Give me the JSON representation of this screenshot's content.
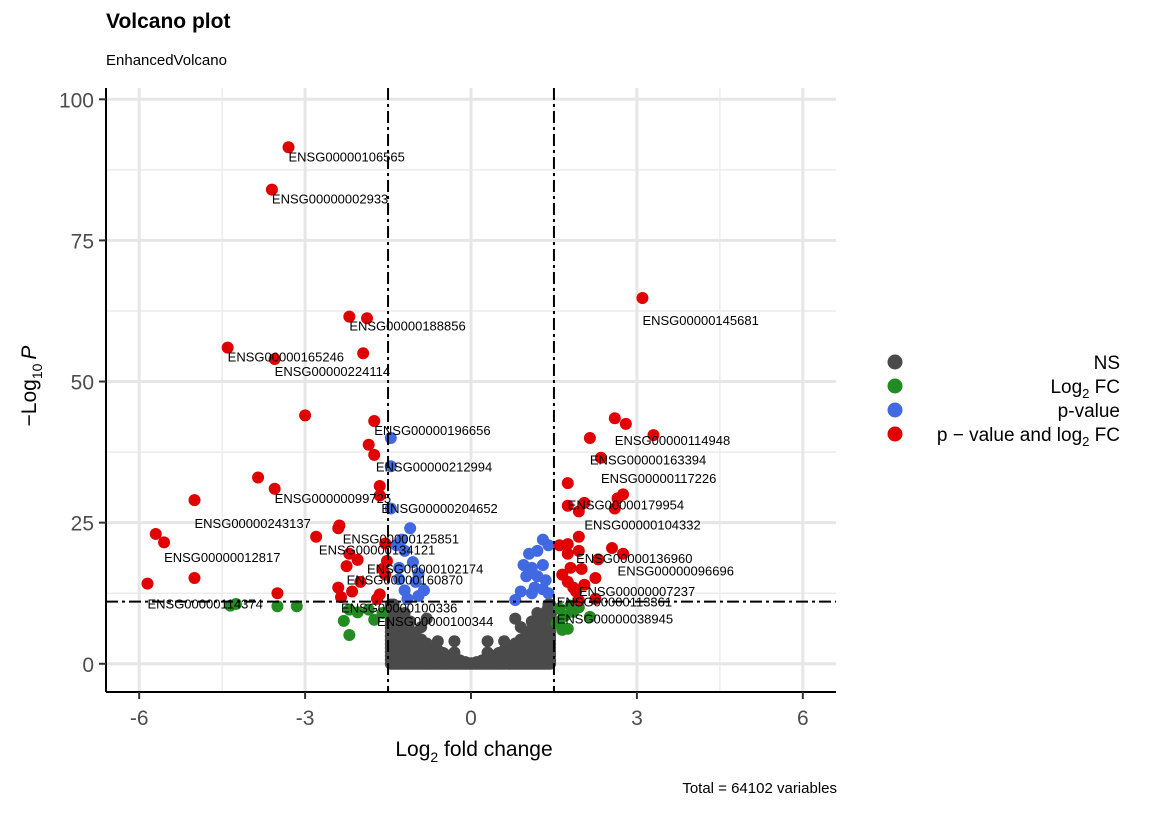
{
  "chart_data": {
    "type": "scatter",
    "title": "Volcano plot",
    "subtitle": "EnhancedVolcano",
    "caption": "Total = 64102 variables",
    "xlabel_main": "Log",
    "xlabel_sub": "2",
    "xlabel_rest": " fold change",
    "ylabel_pre": "−Log",
    "ylabel_sub": "10",
    "ylabel_var": "P",
    "xlim": [
      -6.6,
      6.6
    ],
    "ylim": [
      -5,
      102
    ],
    "x_ticks": [
      -6,
      -3,
      0,
      3,
      6
    ],
    "x_tick_labels": [
      "-6",
      "-3",
      "0",
      "3",
      "6"
    ],
    "y_ticks": [
      0,
      25,
      50,
      75,
      100
    ],
    "y_tick_labels": [
      "0",
      "25",
      "50",
      "75",
      "100"
    ],
    "fc_cutoff": 1.5,
    "p_cutoff": 11,
    "grid": true,
    "legend_position": "right",
    "legend": [
      {
        "key": "NS",
        "color": "#4a4a4a",
        "parts": [
          [
            "NS",
            ""
          ]
        ]
      },
      {
        "key": "FC",
        "color": "#228b22",
        "parts": [
          [
            "Log",
            ""
          ],
          [
            "2",
            "sub"
          ],
          [
            " FC",
            ""
          ]
        ]
      },
      {
        "key": "P",
        "color": "#4169e1",
        "parts": [
          [
            "p-value",
            ""
          ]
        ]
      },
      {
        "key": "FC_P",
        "color": "#e00000",
        "parts": [
          [
            "p − value and log",
            ""
          ],
          [
            "2",
            "sub"
          ],
          [
            " FC",
            ""
          ]
        ]
      }
    ],
    "series": [
      {
        "name": "NS",
        "color": "#4a4a4a",
        "points": [
          [
            0,
            0.1
          ],
          [
            0.1,
            0.3
          ],
          [
            -0.1,
            0.3
          ],
          [
            0.2,
            0.6
          ],
          [
            -0.2,
            0.6
          ],
          [
            0.3,
            1
          ],
          [
            -0.3,
            1
          ],
          [
            0.4,
            1.4
          ],
          [
            -0.4,
            1.4
          ],
          [
            0.5,
            1.9
          ],
          [
            -0.5,
            1.9
          ],
          [
            0.6,
            2.4
          ],
          [
            -0.6,
            2.4
          ],
          [
            0.7,
            3
          ],
          [
            -0.7,
            3
          ],
          [
            0.8,
            3.6
          ],
          [
            -0.8,
            3.6
          ],
          [
            0.9,
            4.3
          ],
          [
            -0.9,
            4.3
          ],
          [
            1,
            5
          ],
          [
            -1,
            5
          ],
          [
            1.1,
            5.7
          ],
          [
            -1.1,
            5.7
          ],
          [
            1.2,
            6.5
          ],
          [
            -1.2,
            6.5
          ],
          [
            1.3,
            7.3
          ],
          [
            -1.3,
            7.3
          ],
          [
            1.4,
            8.2
          ],
          [
            -1.4,
            8.2
          ],
          [
            1.45,
            9
          ],
          [
            -1.45,
            9
          ],
          [
            1.2,
            4
          ],
          [
            -1.2,
            4
          ],
          [
            1,
            3
          ],
          [
            -1,
            3
          ],
          [
            0.8,
            2
          ],
          [
            -0.8,
            2
          ],
          [
            1.3,
            5
          ],
          [
            -1.3,
            5
          ],
          [
            1.4,
            3
          ],
          [
            -1.4,
            3
          ],
          [
            1.4,
            6
          ],
          [
            -1.4,
            6
          ],
          [
            0.3,
            0.4
          ],
          [
            -0.3,
            0.4
          ],
          [
            0.6,
            1
          ],
          [
            -0.6,
            1
          ],
          [
            0.9,
            2
          ],
          [
            -0.9,
            2
          ],
          [
            1.1,
            3
          ],
          [
            -1.1,
            3
          ],
          [
            0.5,
            0.9
          ],
          [
            -0.5,
            0.9
          ],
          [
            0.9,
            6.5
          ],
          [
            -0.9,
            6.5
          ],
          [
            1.2,
            9
          ],
          [
            -1.2,
            9
          ],
          [
            0.6,
            4
          ],
          [
            -0.6,
            4
          ],
          [
            1.1,
            7.5
          ],
          [
            -1.1,
            7.5
          ],
          [
            0.3,
            2
          ],
          [
            -0.3,
            2
          ],
          [
            1.35,
            2
          ],
          [
            -1.35,
            2
          ],
          [
            1.25,
            1
          ],
          [
            -1.25,
            1
          ],
          [
            1.0,
            1.5
          ],
          [
            -1.0,
            1.5
          ],
          [
            0.7,
            0.8
          ],
          [
            -0.7,
            0.8
          ],
          [
            0.4,
            0.3
          ],
          [
            -0.4,
            0.3
          ],
          [
            0.3,
            4
          ],
          [
            -0.3,
            4
          ],
          [
            0.8,
            8
          ],
          [
            -0.8,
            8
          ],
          [
            1.4,
            10.5
          ],
          [
            -1.4,
            10.5
          ],
          [
            0.35,
            0.7
          ],
          [
            -0.35,
            0.7
          ]
        ]
      },
      {
        "name": "Log2 FC",
        "color": "#228b22",
        "points": [
          [
            -4.35,
            10.3
          ],
          [
            -4.25,
            10.6
          ],
          [
            -3.5,
            10.2
          ],
          [
            -3.15,
            10.2
          ],
          [
            -2.2,
            9.6
          ],
          [
            -2.05,
            9.1
          ],
          [
            -1.85,
            9.6
          ],
          [
            -2.3,
            7.6
          ],
          [
            -2.2,
            5.1
          ],
          [
            -1.75,
            7.8
          ],
          [
            -1.6,
            9
          ],
          [
            1.6,
            7.5
          ],
          [
            1.7,
            8.5
          ],
          [
            1.85,
            9.2
          ],
          [
            1.95,
            10
          ],
          [
            2.15,
            8.3
          ],
          [
            1.75,
            6.2
          ],
          [
            1.65,
            6.0
          ],
          [
            1.55,
            7.2
          ],
          [
            1.8,
            10.3
          ],
          [
            1.6,
            9.8
          ]
        ]
      },
      {
        "name": "p-value",
        "color": "#4169e1",
        "points": [
          [
            -1.45,
            40
          ],
          [
            -1.45,
            35
          ],
          [
            -1.45,
            27.5
          ],
          [
            -1.35,
            21
          ],
          [
            -1.1,
            24
          ],
          [
            -1.25,
            22
          ],
          [
            -1.2,
            20
          ],
          [
            -1.05,
            18
          ],
          [
            -0.95,
            16
          ],
          [
            -1.3,
            15
          ],
          [
            -1.2,
            13
          ],
          [
            -1.0,
            14.5
          ],
          [
            -0.85,
            13
          ],
          [
            -1.3,
            17
          ],
          [
            -1.15,
            11.5
          ],
          [
            -0.95,
            12
          ],
          [
            1.3,
            22
          ],
          [
            1.4,
            21
          ],
          [
            1.2,
            20
          ],
          [
            1.05,
            19.5
          ],
          [
            0.95,
            17.5
          ],
          [
            1.1,
            17
          ],
          [
            1.3,
            17.5
          ],
          [
            1.2,
            15.5
          ],
          [
            1.0,
            15.5
          ],
          [
            1.15,
            13.5
          ],
          [
            0.9,
            12.8
          ],
          [
            1.3,
            13.2
          ],
          [
            0.8,
            11.3
          ],
          [
            1.1,
            12.5
          ],
          [
            1.4,
            12.5
          ],
          [
            1.35,
            14.8
          ]
        ]
      },
      {
        "name": "p - value and log2 FC",
        "color": "#e00000",
        "points": [
          [
            -3.3,
            91.5
          ],
          [
            -3.6,
            84
          ],
          [
            -2.2,
            61.5
          ],
          [
            -1.88,
            61.2
          ],
          [
            -4.4,
            56
          ],
          [
            -1.95,
            55
          ],
          [
            -3.55,
            54
          ],
          [
            -3.0,
            44
          ],
          [
            -1.75,
            43
          ],
          [
            -1.85,
            38.8
          ],
          [
            -1.75,
            37
          ],
          [
            -3.85,
            33
          ],
          [
            -3.55,
            31
          ],
          [
            -1.65,
            31.5
          ],
          [
            -1.65,
            29.8
          ],
          [
            -5.0,
            29
          ],
          [
            -2.4,
            24
          ],
          [
            -2.38,
            24.5
          ],
          [
            -5.7,
            23
          ],
          [
            -5.55,
            21.5
          ],
          [
            -2.8,
            22.5
          ],
          [
            -1.55,
            21.3
          ],
          [
            -1.52,
            18.2
          ],
          [
            -2.2,
            19.5
          ],
          [
            -2.05,
            18.4
          ],
          [
            -2.25,
            17.3
          ],
          [
            -1.6,
            16.8
          ],
          [
            -1.55,
            15.8
          ],
          [
            -2.0,
            14.5
          ],
          [
            -5.0,
            15.2
          ],
          [
            -5.85,
            14.2
          ],
          [
            -2.4,
            13.5
          ],
          [
            -3.5,
            12.5
          ],
          [
            -1.65,
            12.3
          ],
          [
            -2.15,
            12.8
          ],
          [
            -2.35,
            11.8
          ],
          [
            -1.7,
            11.5
          ],
          [
            3.1,
            64.8
          ],
          [
            2.6,
            43.5
          ],
          [
            2.8,
            42.5
          ],
          [
            3.3,
            40.5
          ],
          [
            2.15,
            40
          ],
          [
            2.35,
            36.5
          ],
          [
            1.75,
            32
          ],
          [
            2.75,
            30
          ],
          [
            2.65,
            29.3
          ],
          [
            2.05,
            28.5
          ],
          [
            1.75,
            28
          ],
          [
            1.95,
            27
          ],
          [
            2.6,
            27.5
          ],
          [
            1.6,
            21
          ],
          [
            1.75,
            21.2
          ],
          [
            1.95,
            22.5
          ],
          [
            1.75,
            19.5
          ],
          [
            1.95,
            20
          ],
          [
            2.55,
            20.5
          ],
          [
            2.75,
            19.5
          ],
          [
            2.3,
            18.5
          ],
          [
            1.8,
            17
          ],
          [
            2.0,
            16.8
          ],
          [
            1.65,
            15.8
          ],
          [
            1.75,
            14.5
          ],
          [
            2.25,
            15.2
          ],
          [
            2.05,
            14
          ],
          [
            1.85,
            13.5
          ],
          [
            1.9,
            12.8
          ],
          [
            2.25,
            11.5
          ],
          [
            1.95,
            11.2
          ]
        ]
      }
    ],
    "labels": [
      {
        "text": "ENSG00000106565",
        "x": -3.3,
        "y": 91.5
      },
      {
        "text": "ENSG00000002933",
        "x": -3.6,
        "y": 84
      },
      {
        "text": "ENSG00000188856",
        "x": -2.2,
        "y": 61.5
      },
      {
        "text": "ENSG00000165246",
        "x": -4.4,
        "y": 56
      },
      {
        "text": "ENSG00000224114",
        "x": -3.55,
        "y": 53.5
      },
      {
        "text": "ENSG00000196656",
        "x": -1.75,
        "y": 43
      },
      {
        "text": "ENSG00000212994",
        "x": -1.72,
        "y": 36.5
      },
      {
        "text": "ENSG00000099725",
        "x": -3.55,
        "y": 31
      },
      {
        "text": "ENSG00000204652",
        "x": -1.62,
        "y": 29.2
      },
      {
        "text": "ENSG00000243137",
        "x": -5.0,
        "y": 26.5
      },
      {
        "text": "ENSG00000125851",
        "x": -2.32,
        "y": 23.8
      },
      {
        "text": "ENSG00000134121",
        "x": -2.75,
        "y": 21.8
      },
      {
        "text": "ENSG00000012817",
        "x": -5.55,
        "y": 20.5
      },
      {
        "text": "ENSG00000102174",
        "x": -1.88,
        "y": 18.5
      },
      {
        "text": "ENSG00000160870",
        "x": -2.25,
        "y": 16.5
      },
      {
        "text": "ENSG00000114374",
        "x": -5.85,
        "y": 12.3
      },
      {
        "text": "ENSG00000100336",
        "x": -2.35,
        "y": 11.6
      },
      {
        "text": "ENSG00000100344",
        "x": -1.7,
        "y": 9.2
      },
      {
        "text": "ENSG00000145681",
        "x": 3.1,
        "y": 62.5
      },
      {
        "text": "ENSG00000114948",
        "x": 2.6,
        "y": 41.2
      },
      {
        "text": "ENSG00000163394",
        "x": 2.15,
        "y": 37.8
      },
      {
        "text": "ENSG00000117226",
        "x": 2.35,
        "y": 34.5
      },
      {
        "text": "ENSG00000179954",
        "x": 1.75,
        "y": 29.8
      },
      {
        "text": "ENSG00000104332",
        "x": 2.05,
        "y": 26.3
      },
      {
        "text": "ENSG00000136960",
        "x": 1.9,
        "y": 20.3
      },
      {
        "text": "ENSG00000096696",
        "x": 2.65,
        "y": 18.1
      },
      {
        "text": "ENSG00000007237",
        "x": 1.95,
        "y": 14.5
      },
      {
        "text": "ENSG00000113361",
        "x": 1.55,
        "y": 12.6
      },
      {
        "text": "ENSG00000038945",
        "x": 1.55,
        "y": 9.6
      }
    ]
  }
}
